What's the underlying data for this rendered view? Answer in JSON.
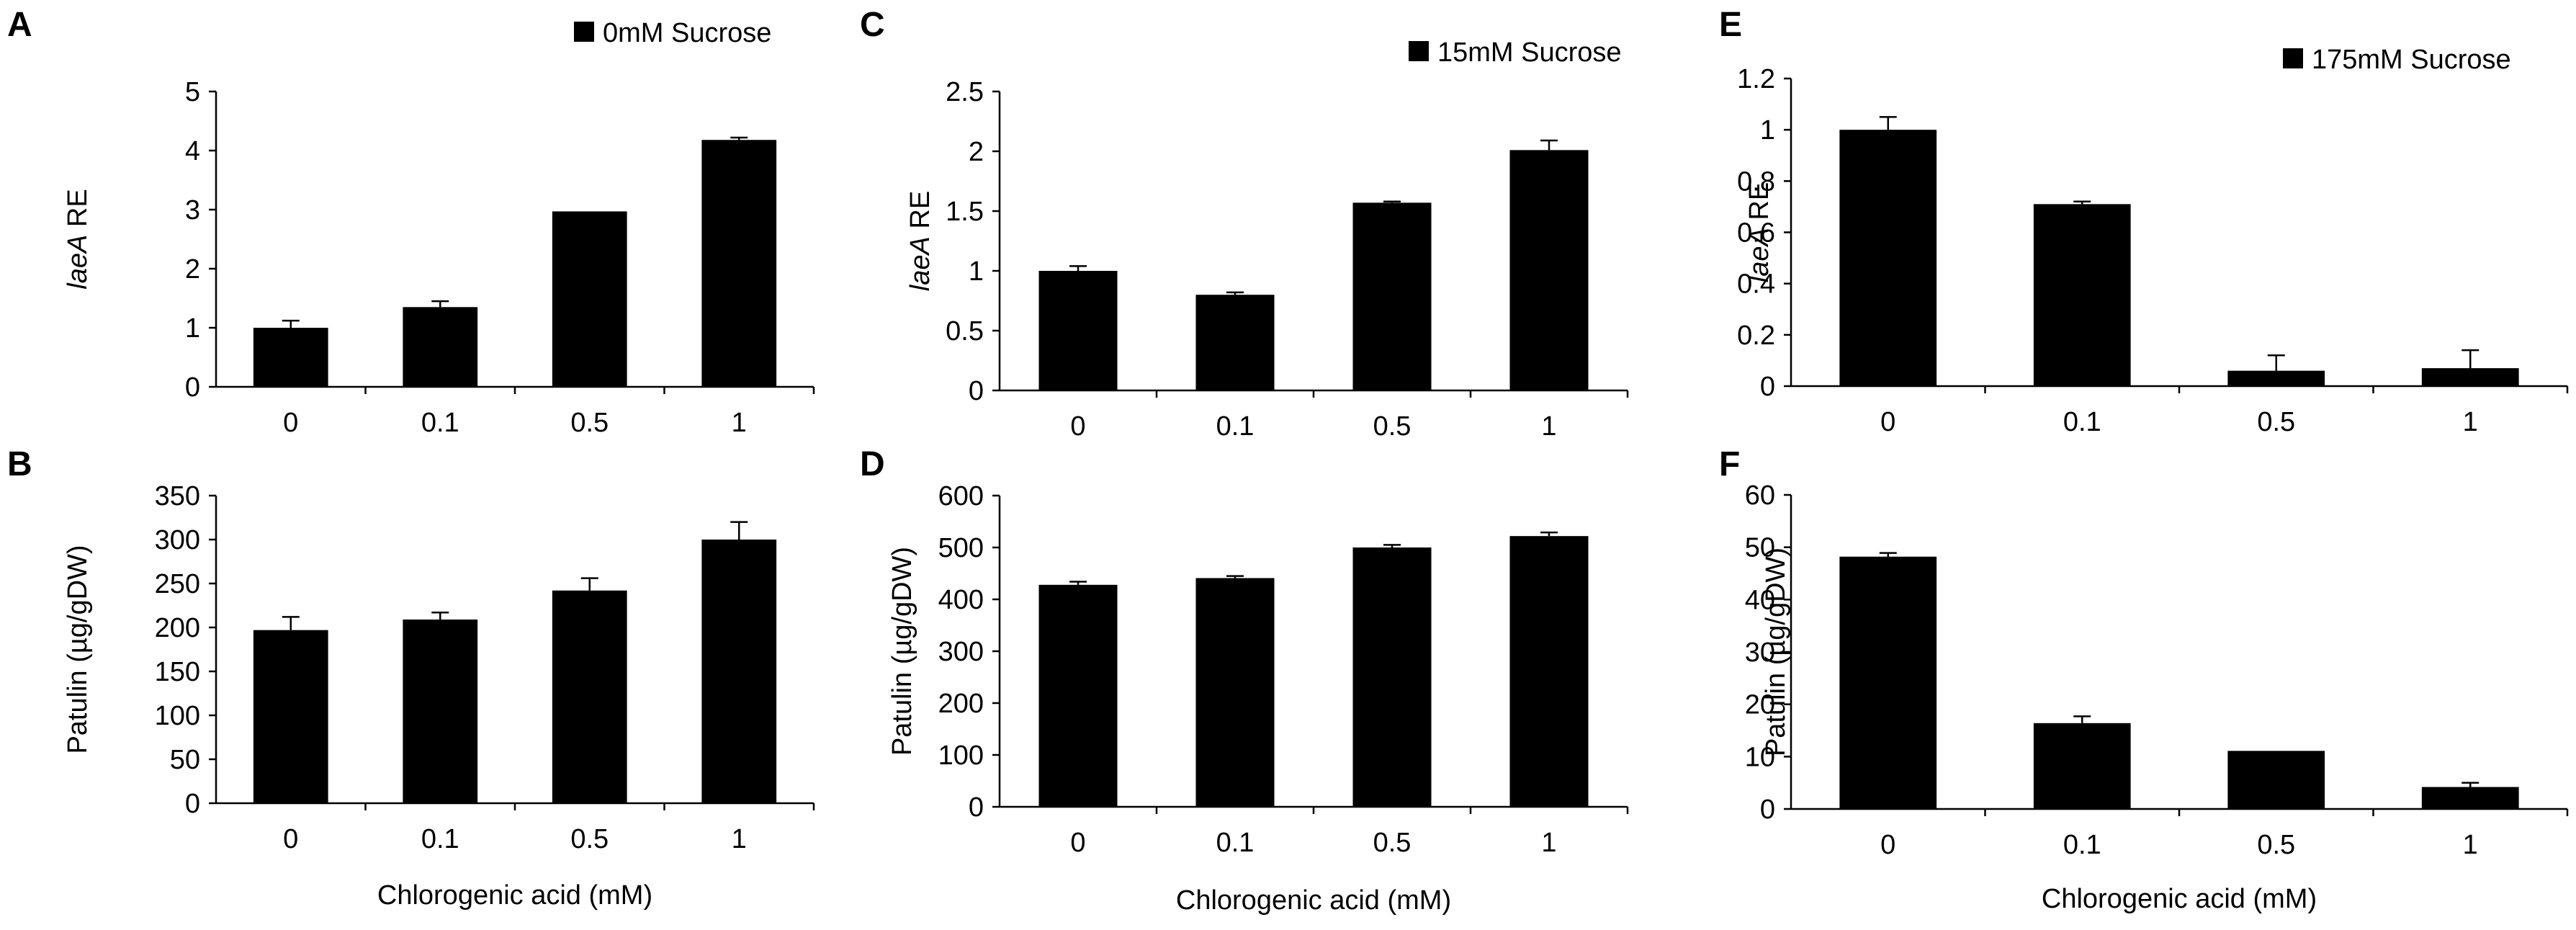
{
  "figure_title": "",
  "chart_data": [
    {
      "panel": "A",
      "type": "bar",
      "title": "",
      "legend": "0mM Sucrose",
      "legend_position": "top-right",
      "categories": [
        "0",
        "0.1",
        "0.5",
        "1"
      ],
      "values": [
        1.0,
        1.35,
        2.97,
        4.18
      ],
      "errors": [
        0.12,
        0.1,
        0.0,
        0.04
      ],
      "ylabel_italic": "laeA",
      "ylabel_rest": " RE",
      "xlabel": "",
      "ylim": [
        0,
        5
      ],
      "yticks": [
        "0",
        "1",
        "2",
        "3",
        "4",
        "5"
      ],
      "grid": false
    },
    {
      "panel": "B",
      "type": "bar",
      "title": "",
      "legend": "",
      "categories": [
        "0",
        "0.1",
        "0.5",
        "1"
      ],
      "values": [
        197,
        209,
        242,
        300
      ],
      "errors": [
        15,
        8,
        14,
        20
      ],
      "ylabel_italic": "",
      "ylabel_rest": "Patulin (µg/gDW)",
      "xlabel": "Chlorogenic acid (mM)",
      "ylim": [
        0,
        350
      ],
      "yticks": [
        "0",
        "50",
        "100",
        "150",
        "200",
        "250",
        "300",
        "350"
      ],
      "grid": false
    },
    {
      "panel": "C",
      "type": "bar",
      "title": "",
      "legend": "15mM Sucrose",
      "legend_position": "top-right",
      "categories": [
        "0",
        "0.1",
        "0.5",
        "1"
      ],
      "values": [
        1.0,
        0.8,
        1.57,
        2.01
      ],
      "errors": [
        0.04,
        0.02,
        0.01,
        0.08
      ],
      "ylabel_italic": "laeA",
      "ylabel_rest": " RE",
      "xlabel": "",
      "ylim": [
        0,
        2.5
      ],
      "yticks": [
        "0",
        "0.5",
        "1",
        "1.5",
        "2",
        "2.5"
      ],
      "grid": false
    },
    {
      "panel": "D",
      "type": "bar",
      "title": "",
      "legend": "",
      "categories": [
        "0",
        "0.1",
        "0.5",
        "1"
      ],
      "values": [
        428,
        441,
        500,
        522
      ],
      "errors": [
        6,
        4,
        5,
        7
      ],
      "ylabel_italic": "",
      "ylabel_rest": "Patulin (µg/gDW)",
      "xlabel": "Chlorogenic acid (mM)",
      "ylim": [
        0,
        600
      ],
      "yticks": [
        "0",
        "100",
        "200",
        "300",
        "400",
        "500",
        "600"
      ],
      "grid": false
    },
    {
      "panel": "E",
      "type": "bar",
      "title": "",
      "legend": "175mM Sucrose",
      "legend_position": "top-right",
      "categories": [
        "0",
        "0.1",
        "0.5",
        "1"
      ],
      "values": [
        1.0,
        0.71,
        0.06,
        0.07
      ],
      "errors": [
        0.05,
        0.01,
        0.06,
        0.07
      ],
      "ylabel_italic": "laeA",
      "ylabel_rest": " RE",
      "xlabel": "",
      "ylim": [
        0,
        1.2
      ],
      "yticks": [
        "0",
        "0.2",
        "0.4",
        "0.6",
        "0.8",
        "1",
        "1.2"
      ],
      "grid": false
    },
    {
      "panel": "F",
      "type": "bar",
      "title": "",
      "legend": "",
      "categories": [
        "0",
        "0.1",
        "0.5",
        "1"
      ],
      "values": [
        48.2,
        16.4,
        11.1,
        4.2
      ],
      "errors": [
        0.7,
        1.3,
        0.0,
        0.8
      ],
      "ylabel_italic": "",
      "ylabel_rest": "Patulin (µg/gDW)",
      "xlabel": "Chlorogenic acid (mM)",
      "ylim": [
        0,
        60
      ],
      "yticks": [
        "0",
        "10",
        "20",
        "30",
        "40",
        "50",
        "60"
      ],
      "grid": false
    }
  ]
}
